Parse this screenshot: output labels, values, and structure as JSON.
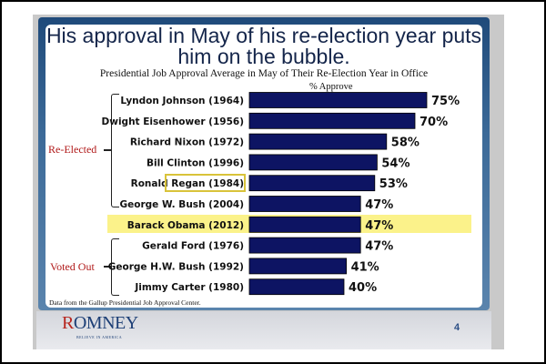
{
  "chart_data": {
    "type": "bar",
    "orientation": "horizontal",
    "title": "His approval in May of his re-election year puts him on the bubble.",
    "subtitle": "Presidential Job Approval Average in May of Their Re-Election Year in Office",
    "xlabel": "% Approve",
    "categories": [
      "Lyndon Johnson (1964)",
      "Dwight Eisenhower (1956)",
      "Richard Nixon (1972)",
      "Bill Clinton (1996)",
      "Ronald Regan (1984)",
      "George W. Bush (2004)",
      "Barack Obama (2012)",
      "Gerald Ford (1976)",
      "George H.W. Bush (1992)",
      "Jimmy Carter (1980)"
    ],
    "values": [
      75,
      70,
      58,
      54,
      53,
      47,
      47,
      47,
      41,
      40
    ],
    "data_labels": [
      "75%",
      "70%",
      "58%",
      "54%",
      "53%",
      "47%",
      "47%",
      "47%",
      "41%",
      "40%"
    ],
    "xlim": [
      0,
      100
    ],
    "grid": false,
    "bar_color": "#0d1463",
    "highlight_color": "#fbf28a",
    "groups": [
      {
        "label": "Re-Elected",
        "members": [
          "Lyndon Johnson (1964)",
          "Dwight Eisenhower (1956)",
          "Richard Nixon (1972)",
          "Bill Clinton (1996)",
          "Ronald Regan (1984)",
          "George W. Bush (2004)"
        ]
      },
      {
        "label": "Voted Out",
        "members": [
          "Gerald Ford (1976)",
          "George H.W. Bush (1992)",
          "Jimmy Carter (1980)"
        ]
      }
    ],
    "highlighted": "Barack Obama (2012)",
    "boxed": "Ronald Regan (1984)",
    "source": "Data from the Gallup Presidential Job Approval Center."
  },
  "footer": {
    "logo_text": "OMNEY",
    "logo_initial": "R",
    "logo_tagline": "BELIEVE IN AMERICA",
    "page_number": "4"
  }
}
